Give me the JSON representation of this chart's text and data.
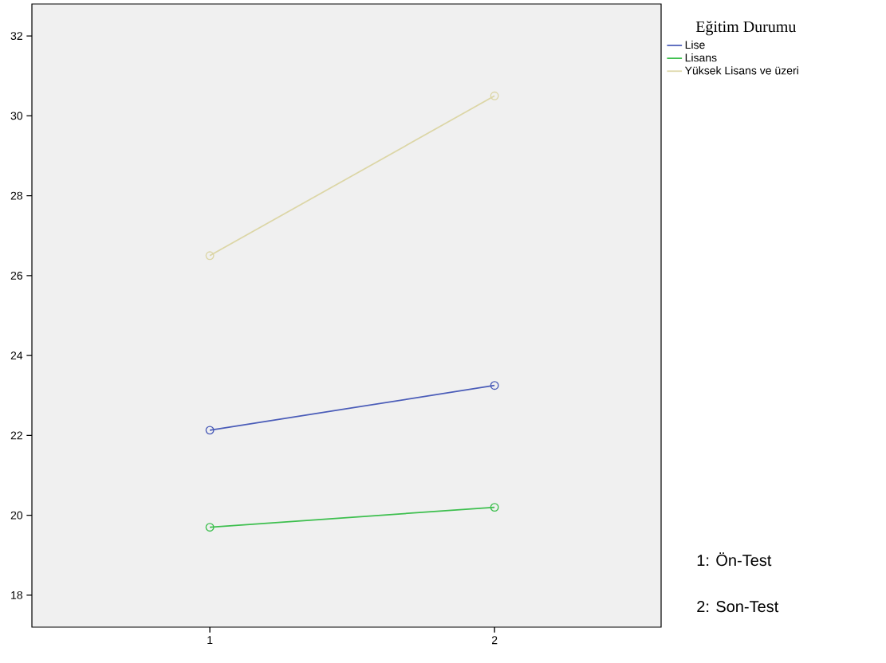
{
  "chart_data": {
    "type": "line",
    "legend_title": "Eğitim Durumu",
    "categories": [
      "1",
      "2"
    ],
    "series": [
      {
        "name": "Lise",
        "color": "#4a5cb8",
        "values": [
          22.13,
          23.25
        ]
      },
      {
        "name": "Lisans",
        "color": "#3dbf4e",
        "values": [
          19.7,
          20.2
        ]
      },
      {
        "name": "Yüksek Lisans ve üzeri",
        "color": "#dcd6a6",
        "values": [
          26.5,
          30.5
        ]
      }
    ],
    "ylim": [
      17.2,
      32.8
    ],
    "yticks": [
      18,
      20,
      22,
      24,
      26,
      28,
      30,
      32
    ],
    "marker": "circle",
    "line_style": "solid",
    "grid": false,
    "legend": "right",
    "annotations": [
      "1: Ön-Test",
      "2: Son-Test"
    ]
  }
}
